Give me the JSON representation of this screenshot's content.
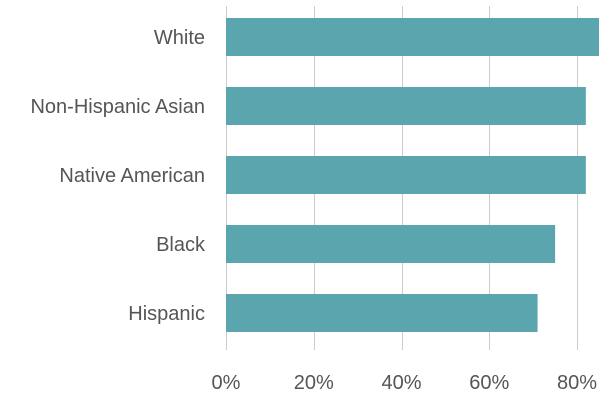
{
  "chart_data": {
    "type": "bar",
    "orientation": "horizontal",
    "categories": [
      "White",
      "Non-Hispanic Asian",
      "Native American",
      "Black",
      "Hispanic"
    ],
    "values": [
      85,
      82,
      82,
      75,
      71
    ],
    "x_ticks": [
      0,
      20,
      40,
      60,
      80
    ],
    "x_tick_labels": [
      "0%",
      "20%",
      "40%",
      "60%",
      "80%"
    ],
    "xlim": [
      0,
      85
    ],
    "title": "",
    "xlabel": "",
    "ylabel": "",
    "grid": "vertical",
    "legend": "none",
    "bar_color": "#5ba5ae"
  }
}
